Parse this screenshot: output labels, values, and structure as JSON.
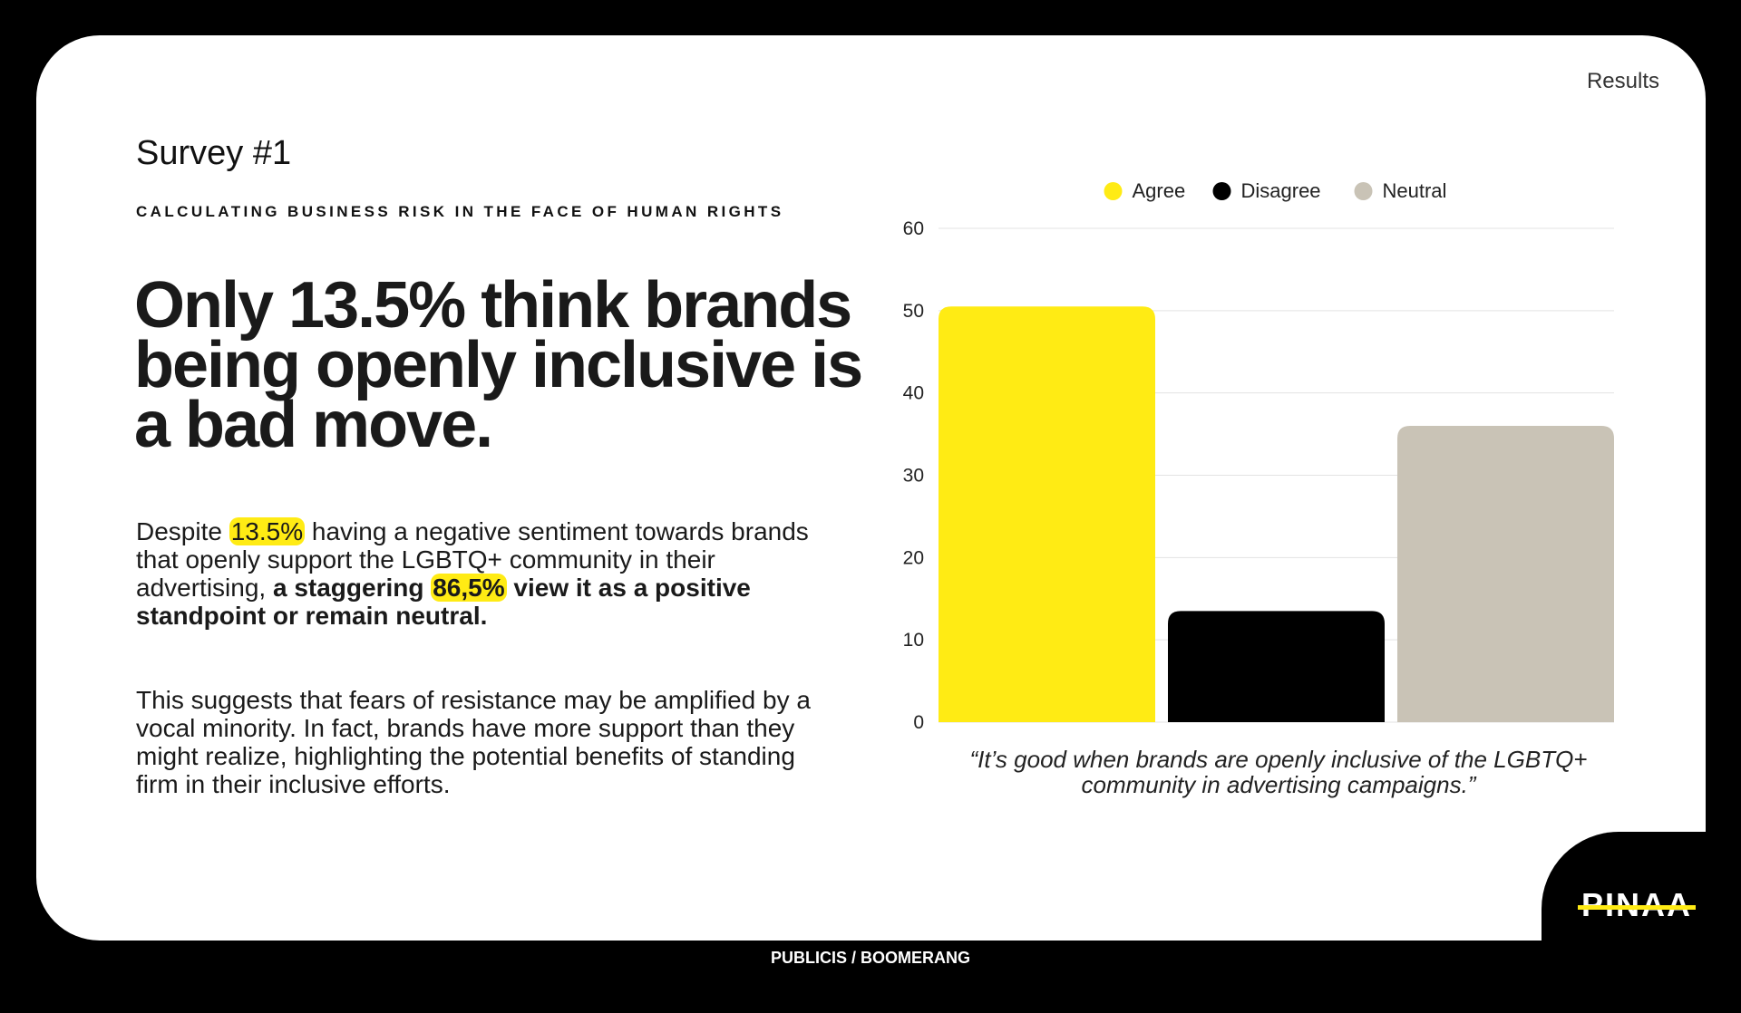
{
  "header": {
    "section_tag": "Results"
  },
  "intro": {
    "survey_title": "Survey #1",
    "kicker": "CALCULATING BUSINESS RISK IN THE FACE OF HUMAN RIGHTS",
    "headline": "Only 13.5% think brands being openly inclusive is a bad move."
  },
  "paragraph1": {
    "part1": "Despite ",
    "highlight1": "13.5%",
    "part2": " having a negative sentiment towards brands that openly support the LGBTQ+ community in their advertising, ",
    "bold1": "a staggering ",
    "highlight2": "86,5%",
    "bold2": " view it as a positive standpoint or remain neutral."
  },
  "paragraph2": "This suggests that fears of resistance may be amplified by a vocal minority. In fact,  brands have more support than they might realize, highlighting the potential benefits of standing firm in their inclusive efforts.",
  "chart_data": {
    "type": "bar",
    "categories": [
      "Agree",
      "Disagree",
      "Neutral"
    ],
    "values": [
      50.5,
      13.5,
      36
    ],
    "colors": [
      "#ffeb14",
      "#000000",
      "#c9c3b6"
    ],
    "ylim": [
      0,
      60
    ],
    "yticks": [
      "0",
      "10",
      "20",
      "30",
      "40",
      "50",
      "60"
    ],
    "legend": [
      "Agree",
      "Disagree",
      "Neutral"
    ],
    "legend_position": "top",
    "grid": true,
    "caption": "“It’s good when brands are openly inclusive of the LGBTQ+ community in advertising campaigns.”"
  },
  "logo": {
    "text": "PINAA"
  },
  "footer": {
    "text": "PUBLICIS / BOOMERANG"
  }
}
